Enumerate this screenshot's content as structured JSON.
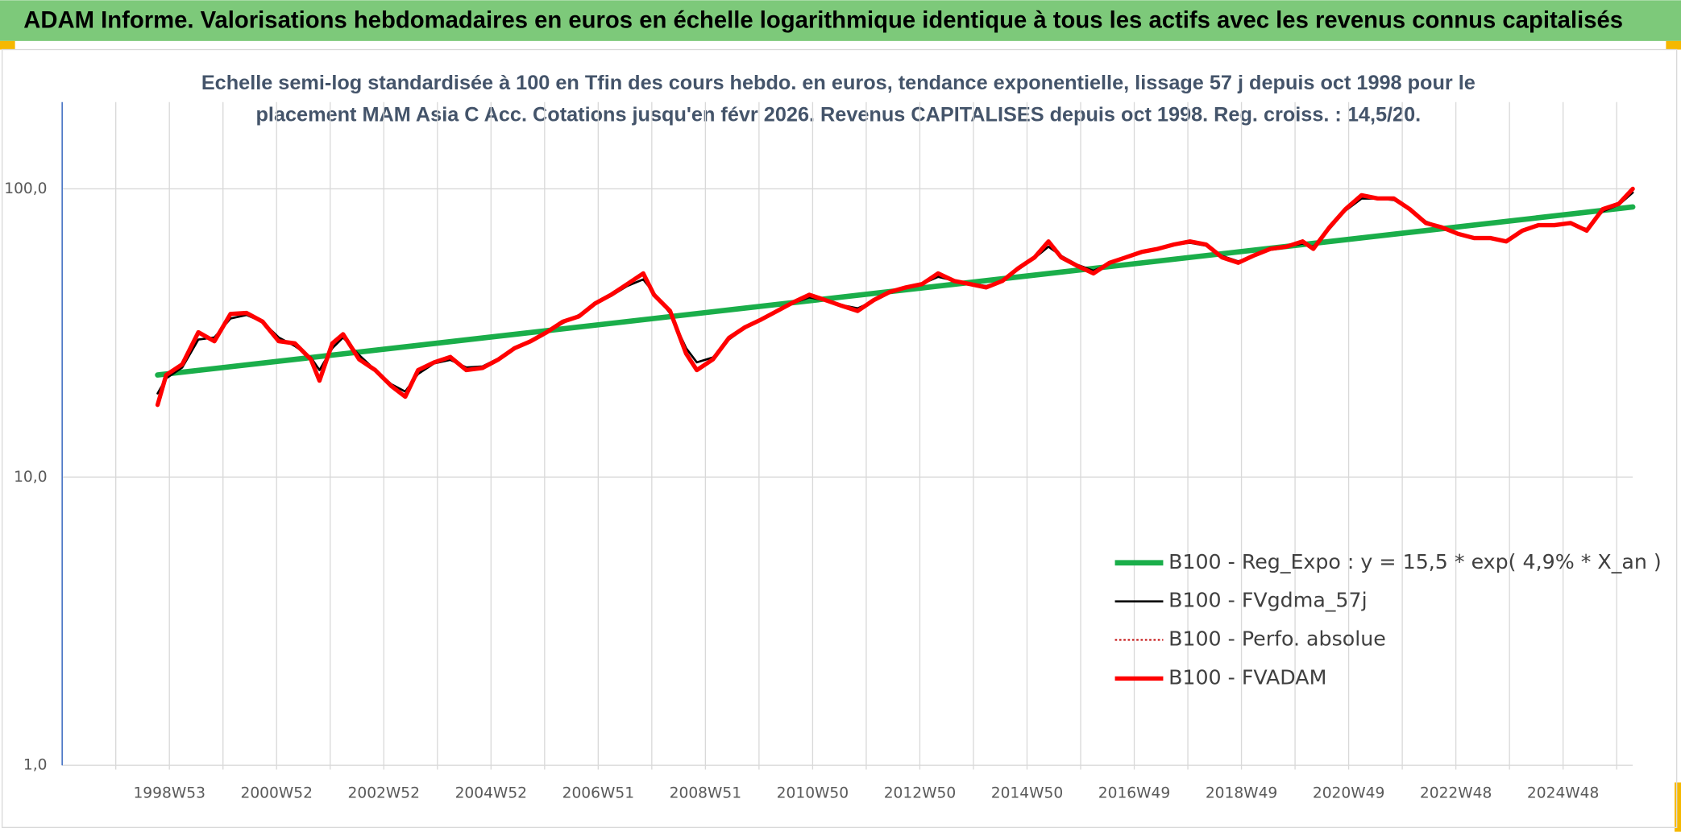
{
  "chart_data": {
    "type": "line",
    "title": "ADAM Informe. Valorisations hebdomadaires en euros en échelle logarithmique identique à tous les actifs avec les revenus connus capitalisés",
    "subtitle": [
      "Echelle semi-log standardisée à 100 en Tfin des cours hebdo. en euros, tendance exponentielle, lissage 57 j depuis oct 1998 pour le",
      "placement MAM Asia C Acc. Cotations jusqu'en févr 2026. Revenus CAPITALISES depuis oct 1998. Reg. croiss. : 14,5/20."
    ],
    "yscale": "log",
    "ylim": [
      1,
      200
    ],
    "yticks": [
      {
        "value": 1,
        "label": "1,0"
      },
      {
        "value": 10,
        "label": "10,0"
      },
      {
        "value": 100,
        "label": "100,0"
      }
    ],
    "xlim": [
      1997,
      2026.3
    ],
    "xticks": [
      {
        "value": 1999,
        "label": "1998W53"
      },
      {
        "value": 2001,
        "label": "2000W52"
      },
      {
        "value": 2003,
        "label": "2002W52"
      },
      {
        "value": 2005,
        "label": "2004W52"
      },
      {
        "value": 2007,
        "label": "2006W51"
      },
      {
        "value": 2009,
        "label": "2008W51"
      },
      {
        "value": 2011,
        "label": "2010W50"
      },
      {
        "value": 2013,
        "label": "2012W50"
      },
      {
        "value": 2015,
        "label": "2014W50"
      },
      {
        "value": 2017,
        "label": "2016W49"
      },
      {
        "value": 2019,
        "label": "2018W49"
      },
      {
        "value": 2021,
        "label": "2020W49"
      },
      {
        "value": 2023,
        "label": "2022W48"
      },
      {
        "value": 2025,
        "label": "2024W48"
      }
    ],
    "grid": true,
    "legend": "lower right",
    "x": [
      1998.78,
      1998.94,
      1999.24,
      1999.54,
      1999.84,
      2000.14,
      2000.44,
      2000.74,
      2001.04,
      2001.34,
      2001.64,
      2001.8,
      2002.04,
      2002.24,
      2002.54,
      2002.84,
      2003.14,
      2003.4,
      2003.64,
      2003.94,
      2004.24,
      2004.54,
      2004.84,
      2005.14,
      2005.44,
      2005.74,
      2006.04,
      2006.34,
      2006.64,
      2006.94,
      2007.24,
      2007.54,
      2007.84,
      2008.04,
      2008.34,
      2008.64,
      2008.84,
      2009.14,
      2009.44,
      2009.74,
      2010.04,
      2010.34,
      2010.64,
      2010.94,
      2011.24,
      2011.54,
      2011.84,
      2012.14,
      2012.44,
      2012.74,
      2013.04,
      2013.34,
      2013.64,
      2013.94,
      2014.24,
      2014.54,
      2014.84,
      2015.14,
      2015.4,
      2015.64,
      2015.94,
      2016.24,
      2016.54,
      2016.84,
      2017.14,
      2017.44,
      2017.74,
      2018.04,
      2018.34,
      2018.64,
      2018.94,
      2019.24,
      2019.54,
      2019.84,
      2020.14,
      2020.34,
      2020.64,
      2020.94,
      2021.24,
      2021.54,
      2021.84,
      2022.14,
      2022.44,
      2022.74,
      2023.04,
      2023.34,
      2023.64,
      2023.94,
      2024.24,
      2024.54,
      2024.84,
      2025.14,
      2025.44,
      2025.74,
      2026.04,
      2026.3
    ],
    "series": [
      {
        "name": "B100 - Reg_Expo : y = 15,5 * exp( 4,9% *  X_an )",
        "color": "#1aae4a",
        "x": [
          1998.78,
          2026.3
        ],
        "values": [
          22.6,
          86.5
        ]
      },
      {
        "name": "B100 - FVgdma_57j",
        "color": "#000000",
        "values": [
          19.5,
          22.0,
          24.0,
          30.0,
          30.5,
          35.5,
          36.5,
          34.5,
          30.5,
          28.5,
          26.0,
          23.5,
          28.0,
          30.5,
          26.5,
          23.5,
          21.0,
          19.8,
          22.8,
          24.8,
          25.5,
          24.0,
          24.2,
          25.8,
          27.8,
          29.8,
          31.8,
          34.2,
          36.5,
          39.8,
          42.5,
          46.0,
          48.5,
          43.5,
          37.0,
          28.0,
          25.0,
          26.0,
          30.0,
          33.0,
          35.2,
          37.6,
          40.2,
          42.0,
          41.0,
          39.5,
          38.5,
          40.8,
          43.5,
          45.2,
          46.8,
          49.5,
          48.0,
          46.8,
          46.0,
          48.0,
          52.5,
          57.5,
          63.0,
          58.5,
          54.5,
          52.0,
          55.0,
          57.8,
          60.2,
          61.8,
          64.0,
          65.0,
          63.5,
          58.5,
          56.0,
          58.5,
          61.5,
          63.0,
          64.5,
          63.0,
          72.5,
          84.0,
          92.5,
          92.5,
          91.5,
          85.0,
          77.0,
          73.5,
          70.0,
          68.0,
          67.5,
          66.0,
          71.0,
          74.5,
          74.8,
          75.5,
          72.5,
          83.5,
          88.0,
          97.0
        ]
      },
      {
        "name": "B100 - Perfo. absolue",
        "color": "#c00000",
        "values": [
          17.8,
          22.6,
          24.6,
          31.8,
          29.6,
          36.8,
          37.1,
          34.6,
          29.6,
          29.1,
          25.6,
          21.6,
          29.1,
          31.3,
          25.6,
          23.5,
          20.7,
          19.0,
          23.5,
          25.0,
          26.1,
          23.5,
          23.9,
          25.6,
          28.0,
          29.6,
          31.8,
          34.6,
          36.1,
          40.0,
          42.9,
          46.7,
          50.9,
          42.9,
          37.7,
          26.8,
          23.5,
          25.6,
          30.4,
          33.1,
          35.2,
          37.7,
          40.4,
          42.9,
          41.1,
          39.3,
          37.7,
          41.1,
          43.9,
          45.5,
          46.7,
          50.9,
          47.9,
          46.7,
          45.5,
          47.9,
          53.1,
          57.8,
          65.7,
          57.8,
          54.0,
          50.9,
          55.4,
          57.8,
          60.4,
          61.9,
          64.1,
          65.7,
          64.1,
          57.8,
          55.4,
          58.8,
          61.9,
          63.0,
          65.7,
          61.9,
          73.5,
          85.0,
          95.0,
          92.6,
          92.6,
          85.0,
          76.1,
          73.5,
          69.8,
          67.5,
          67.5,
          65.7,
          71.6,
          74.8,
          74.8,
          76.1,
          71.6,
          85.0,
          88.7,
          100
        ]
      },
      {
        "name": "B100 - FVADAM",
        "color": "#ff0000",
        "values": [
          17.8,
          22.6,
          24.6,
          31.8,
          29.6,
          36.8,
          37.1,
          34.6,
          29.6,
          29.1,
          25.6,
          21.6,
          29.1,
          31.3,
          25.6,
          23.5,
          20.7,
          19.0,
          23.5,
          25.0,
          26.1,
          23.5,
          23.9,
          25.6,
          28.0,
          29.6,
          31.8,
          34.6,
          36.1,
          40.0,
          42.9,
          46.7,
          50.9,
          42.9,
          37.7,
          26.8,
          23.5,
          25.6,
          30.4,
          33.1,
          35.2,
          37.7,
          40.4,
          42.9,
          41.1,
          39.3,
          37.7,
          41.1,
          43.9,
          45.5,
          46.7,
          50.9,
          47.9,
          46.7,
          45.5,
          47.9,
          53.1,
          57.8,
          65.7,
          57.8,
          54.0,
          50.9,
          55.4,
          57.8,
          60.4,
          61.9,
          64.1,
          65.7,
          64.1,
          57.8,
          55.4,
          58.8,
          61.9,
          63.0,
          65.7,
          61.9,
          73.5,
          85.0,
          95.0,
          92.6,
          92.6,
          85.0,
          76.1,
          73.5,
          69.8,
          67.5,
          67.5,
          65.7,
          71.6,
          74.8,
          74.8,
          76.1,
          71.6,
          85.0,
          88.7,
          100
        ]
      }
    ]
  }
}
